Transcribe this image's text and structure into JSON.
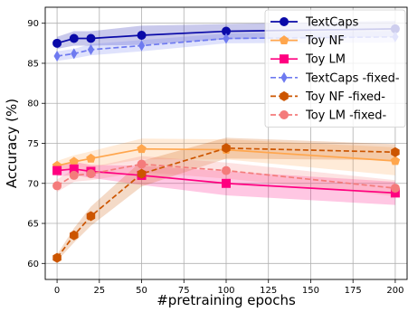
{
  "chart_data": {
    "type": "line",
    "xlabel": "#pretraining epochs",
    "ylabel": "Accuracy (%)",
    "xlim": [
      -7,
      207
    ],
    "ylim": [
      58,
      92
    ],
    "grid": true,
    "legend_position": "upper right",
    "x_ticks": [
      0,
      25,
      50,
      75,
      100,
      125,
      150,
      175,
      200
    ],
    "y_ticks": [
      60,
      65,
      70,
      75,
      80,
      85,
      90
    ],
    "x": [
      0,
      10,
      20,
      50,
      100,
      200
    ],
    "series": [
      {
        "name": "TextCaps",
        "color": "#0a0aa8",
        "line_style": "solid",
        "marker": "circle",
        "values": [
          87.5,
          88.1,
          88.1,
          88.5,
          89.0,
          89.3
        ],
        "band_low": [
          86.8,
          87.2,
          87.2,
          87.3,
          88.0,
          88.3
        ],
        "band_high": [
          88.3,
          89.0,
          89.0,
          89.7,
          89.9,
          90.3
        ]
      },
      {
        "name": "Toy NF",
        "color": "#ffa64d",
        "line_style": "solid",
        "marker": "pentagon",
        "values": [
          72.2,
          72.7,
          73.1,
          74.3,
          74.2,
          72.8
        ],
        "band_low": [
          71.6,
          71.9,
          72.0,
          73.0,
          73.0,
          71.0
        ],
        "band_high": [
          72.8,
          73.5,
          74.0,
          75.6,
          75.5,
          74.5
        ]
      },
      {
        "name": "Toy LM",
        "color": "#ff0080",
        "line_style": "solid",
        "marker": "square",
        "values": [
          71.6,
          71.8,
          71.5,
          71.0,
          70.0,
          68.8
        ],
        "band_low": [
          70.9,
          71.0,
          70.7,
          69.8,
          68.5,
          67.3
        ],
        "band_high": [
          72.3,
          72.7,
          72.3,
          72.2,
          71.5,
          70.2
        ]
      },
      {
        "name": "TextCaps -fixed-",
        "color": "#6e7af0",
        "line_style": "dashed",
        "marker": "diamond",
        "values": [
          85.9,
          86.2,
          86.7,
          87.2,
          88.1,
          88.3
        ],
        "band_low": [
          85.3,
          85.6,
          86.0,
          86.5,
          87.5,
          87.6
        ],
        "band_high": [
          86.5,
          86.8,
          87.4,
          87.9,
          88.7,
          89.0
        ]
      },
      {
        "name": "Toy NF -fixed-",
        "color": "#cc5500",
        "line_style": "dashed",
        "marker": "hexagon",
        "values": [
          60.7,
          63.5,
          65.9,
          71.2,
          74.4,
          73.9
        ],
        "band_low": [
          60.3,
          62.6,
          64.7,
          69.6,
          73.1,
          72.9
        ],
        "band_high": [
          61.1,
          64.4,
          67.1,
          72.8,
          75.7,
          74.9
        ]
      },
      {
        "name": "Toy LM -fixed-",
        "color": "#f47b7b",
        "line_style": "dashed",
        "marker": "circle",
        "values": [
          69.7,
          71.0,
          71.2,
          72.4,
          71.6,
          69.4
        ],
        "band_low": [
          68.9,
          70.2,
          70.4,
          71.4,
          70.6,
          68.4
        ],
        "band_high": [
          70.5,
          71.8,
          72.0,
          73.4,
          72.6,
          70.4
        ]
      }
    ]
  }
}
